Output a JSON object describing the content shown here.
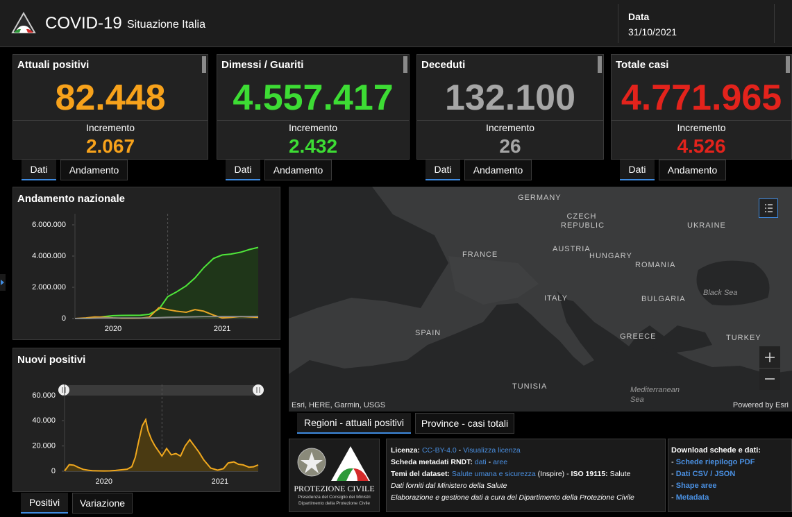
{
  "header": {
    "title": "COVID-19",
    "subtitle": "Situazione Italia",
    "date_label": "Data",
    "date": "31/10/2021"
  },
  "cards": [
    {
      "title": "Attuali positivi",
      "value": "82.448",
      "increment_label": "Incremento",
      "increment": "2.067",
      "color": "#f7a21b",
      "tabs": [
        "Dati",
        "Andamento"
      ]
    },
    {
      "title": "Dimessi / Guariti",
      "value": "4.557.417",
      "increment_label": "Incremento",
      "increment": "2.432",
      "color": "#3ddc34",
      "tabs": [
        "Dati",
        "Andamento"
      ]
    },
    {
      "title": "Deceduti",
      "value": "132.100",
      "increment_label": "Incremento",
      "increment": "26",
      "color": "#a6a6a6",
      "tabs": [
        "Dati",
        "Andamento"
      ]
    },
    {
      "title": "Totale casi",
      "value": "4.771.965",
      "increment_label": "Incremento",
      "increment": "4.526",
      "color": "#e3231c",
      "tabs": [
        "Dati",
        "Andamento"
      ]
    }
  ],
  "chart_data": [
    {
      "type": "line",
      "title": "Andamento nazionale",
      "x": [
        2020.15,
        2020.25,
        2020.33,
        2020.42,
        2020.5,
        2020.58,
        2020.67,
        2020.75,
        2020.83,
        2020.92,
        2021.0,
        2021.08,
        2021.17,
        2021.25,
        2021.33,
        2021.42,
        2021.5,
        2021.58,
        2021.67,
        2021.75,
        2021.83
      ],
      "series": [
        {
          "color": "#4fe63a",
          "fill": "#1f3619",
          "values": [
            0,
            1000,
            30000,
            130000,
            180000,
            200000,
            205000,
            215000,
            270000,
            600000,
            1400000,
            1700000,
            2100000,
            2600000,
            3250000,
            3850000,
            4070000,
            4130000,
            4250000,
            4420000,
            4557417
          ]
        },
        {
          "color": "#e7a526",
          "values": [
            400,
            40000,
            100000,
            90000,
            40000,
            15000,
            13000,
            20000,
            90000,
            700000,
            570000,
            470000,
            400000,
            570000,
            470000,
            220000,
            40000,
            80000,
            130000,
            100000,
            82448
          ]
        },
        {
          "color": "#8a8a8a",
          "values": [
            0,
            3000,
            20000,
            30000,
            34000,
            35000,
            35100,
            35500,
            37000,
            55000,
            74000,
            88000,
            98000,
            110000,
            120000,
            126000,
            127500,
            128000,
            129500,
            131000,
            132100
          ]
        }
      ],
      "xlim": [
        2020.15,
        2021.83
      ],
      "xticks": [
        {
          "value": 2020.5,
          "label": "2020"
        },
        {
          "value": 2021.5,
          "label": "2021"
        }
      ],
      "xgrid": [
        2021
      ],
      "ylim": [
        0,
        6000000
      ],
      "yticks": [
        0,
        {
          "value": 2000000,
          "label": "2.000.000"
        },
        {
          "value": 4000000,
          "label": "4.000.000"
        },
        {
          "value": 6000000,
          "label": "6.000.000"
        }
      ]
    },
    {
      "type": "line",
      "title": "Nuovi positivi",
      "x": [
        2020.16,
        2020.2,
        2020.24,
        2020.28,
        2020.32,
        2020.36,
        2020.4,
        2020.45,
        2020.5,
        2020.55,
        2020.6,
        2020.65,
        2020.7,
        2020.74,
        2020.77,
        2020.8,
        2020.83,
        2020.86,
        2020.88,
        2020.91,
        2020.94,
        2020.97,
        2021.0,
        2021.04,
        2021.08,
        2021.12,
        2021.16,
        2021.2,
        2021.24,
        2021.28,
        2021.32,
        2021.36,
        2021.42,
        2021.48,
        2021.53,
        2021.57,
        2021.62,
        2021.66,
        2021.7,
        2021.75,
        2021.79,
        2021.83
      ],
      "series": [
        {
          "color": "#f0a81e",
          "fill": "#4a3a12",
          "values": [
            200,
            5200,
            4800,
            3000,
            1500,
            800,
            400,
            250,
            200,
            250,
            600,
            1100,
            1600,
            3600,
            11000,
            24000,
            36000,
            40900,
            32000,
            25000,
            20000,
            16000,
            12000,
            18000,
            13000,
            14000,
            12000,
            20000,
            25000,
            20000,
            15000,
            9000,
            2500,
            800,
            2000,
            6500,
            7400,
            5500,
            5000,
            3200,
            3500,
            5000
          ]
        }
      ],
      "xlim": [
        2020.16,
        2021.83
      ],
      "xticks": [
        {
          "value": 2020.5,
          "label": "2020"
        },
        {
          "value": 2021.5,
          "label": "2021"
        }
      ],
      "xgrid": [
        2021
      ],
      "ylim": [
        0,
        60000
      ],
      "yticks": [
        0,
        {
          "value": 20000,
          "label": "20.000"
        },
        {
          "value": 40000,
          "label": "40.000"
        },
        {
          "value": 60000,
          "label": "60.000"
        }
      ]
    }
  ],
  "chart_tabs": [
    "Positivi",
    "Variazione"
  ],
  "map": {
    "labels": [
      "GERMANY",
      "CZECH REPUBLIC",
      "UKRAINE",
      "FRANCE",
      "AUSTRIA",
      "HUNGARY",
      "ROMANIA",
      "Black Sea",
      "ITALY",
      "BULGARIA",
      "SPAIN",
      "GREECE",
      "TURKEY",
      "TUNISIA",
      "Mediterranean Sea"
    ],
    "attribution": "Esri, HERE, Garmin, USGS",
    "powered": "Powered by Esri",
    "tabs": [
      "Regioni - attuali positivi",
      "Province - casi totali"
    ]
  },
  "logo": {
    "name": "PROTEZIONE CIVILE",
    "line1": "Presidenza del Consiglio dei Ministri",
    "line2": "Dipartimento della Protezione Civile"
  },
  "info": {
    "lines": [
      [
        "Licenza:",
        "CC-BY-4.0",
        "-",
        "Visualizza licenza"
      ],
      [
        "Scheda metadati RNDT:",
        "dati",
        "-",
        "aree"
      ],
      [
        "Temi del dataset:",
        "Salute umana e sicurezza",
        "(Inspire) -",
        "ISO 19115:",
        "Salute"
      ],
      [
        "Dati forniti dal Ministero della Salute"
      ],
      [
        "Elaborazione e gestione dati a cura del Dipartimento della Protezione Civile"
      ]
    ]
  },
  "download": {
    "title": "Download schede e dati:",
    "bullet": "-",
    "items": [
      "Schede riepilogo PDF",
      "Dati CSV / JSON",
      "Shape aree",
      "Metadata"
    ]
  }
}
